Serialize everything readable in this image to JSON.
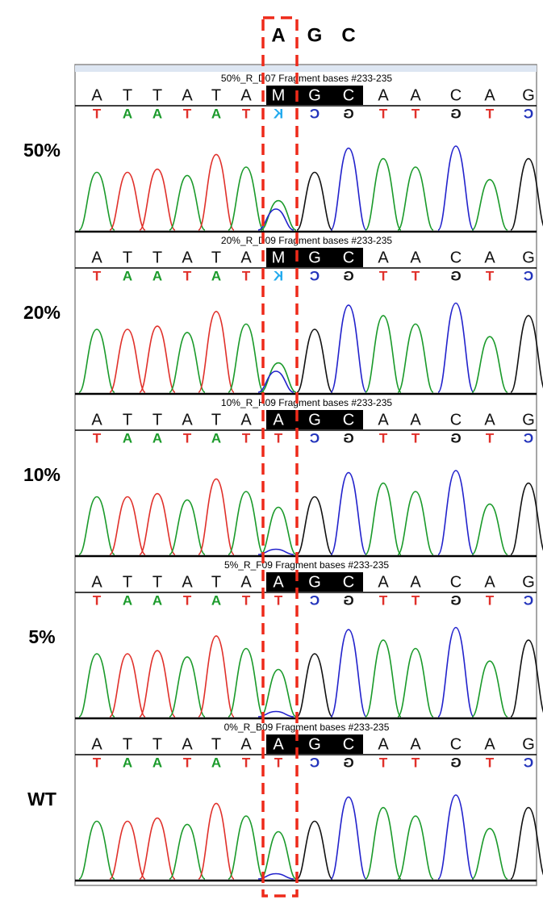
{
  "header": {
    "bases": [
      "A",
      "G",
      "C"
    ]
  },
  "panels": [
    {
      "label": "50%",
      "title": "50%_R_D07  Fragment bases #233-235",
      "sequence": [
        "A",
        "T",
        "T",
        "A",
        "T",
        "A",
        "M",
        "G",
        "C",
        "A",
        "A",
        "C",
        "A",
        "G"
      ],
      "calls": [
        "T",
        "A",
        "A",
        "T",
        "A",
        "T",
        "K",
        "C",
        "G",
        "T",
        "T",
        "G",
        "T",
        "C"
      ]
    },
    {
      "label": "20%",
      "title": "20%_R_D09 Fragment bases #233-235",
      "sequence": [
        "A",
        "T",
        "T",
        "A",
        "T",
        "A",
        "M",
        "G",
        "C",
        "A",
        "A",
        "C",
        "A",
        "G"
      ],
      "calls": [
        "T",
        "A",
        "A",
        "T",
        "A",
        "T",
        "K",
        "C",
        "G",
        "T",
        "T",
        "G",
        "T",
        "C"
      ]
    },
    {
      "label": "10%",
      "title": "10%_R_H09 Fragment bases #233-235",
      "sequence": [
        "A",
        "T",
        "T",
        "A",
        "T",
        "A",
        "A",
        "G",
        "C",
        "A",
        "A",
        "C",
        "A",
        "G"
      ],
      "calls": [
        "T",
        "A",
        "A",
        "T",
        "A",
        "T",
        "T",
        "C",
        "G",
        "T",
        "T",
        "G",
        "T",
        "C"
      ]
    },
    {
      "label": "5%",
      "title": "5%_R_F09 Fragment bases #233-235",
      "sequence": [
        "A",
        "T",
        "T",
        "A",
        "T",
        "A",
        "A",
        "G",
        "C",
        "A",
        "A",
        "C",
        "A",
        "G"
      ],
      "calls": [
        "T",
        "A",
        "A",
        "T",
        "A",
        "T",
        "T",
        "C",
        "G",
        "T",
        "T",
        "G",
        "T",
        "C"
      ]
    },
    {
      "label": "WT",
      "title": "0%_R_B09 Fragment bases #233-235",
      "sequence": [
        "A",
        "T",
        "T",
        "A",
        "T",
        "A",
        "A",
        "G",
        "C",
        "A",
        "A",
        "C",
        "A",
        "G"
      ],
      "calls": [
        "T",
        "A",
        "A",
        "T",
        "A",
        "T",
        "T",
        "C",
        "G",
        "T",
        "T",
        "G",
        "T",
        "C"
      ]
    }
  ]
}
